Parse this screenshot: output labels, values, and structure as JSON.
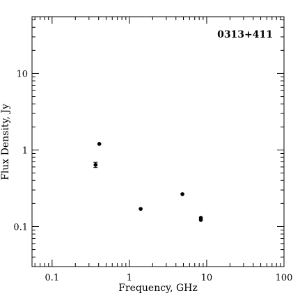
{
  "chart_data": {
    "type": "scatter",
    "title": "0313+411",
    "xlabel": "Frequency, GHz",
    "ylabel": "Flux Density, Jy",
    "x_scale": "log",
    "y_scale": "log",
    "xlim": [
      0.055,
      100
    ],
    "ylim": [
      0.03,
      55
    ],
    "x_ticks": [
      {
        "value": 0.1,
        "label": "0.1"
      },
      {
        "value": 1,
        "label": "1"
      },
      {
        "value": 10,
        "label": "10"
      },
      {
        "value": 100,
        "label": "100"
      }
    ],
    "y_ticks": [
      {
        "value": 0.1,
        "label": "0.1"
      },
      {
        "value": 1,
        "label": "1"
      },
      {
        "value": 10,
        "label": "10"
      }
    ],
    "grid": false,
    "series": [
      {
        "points": [
          {
            "x": 0.365,
            "y": 0.64,
            "yerr": 0.05
          },
          {
            "x": 0.408,
            "y": 1.2
          },
          {
            "x": 1.4,
            "y": 0.17
          },
          {
            "x": 4.85,
            "y": 0.265
          },
          {
            "x": 8.4,
            "y": 0.13
          },
          {
            "x": 8.4,
            "y": 0.122
          }
        ]
      }
    ]
  }
}
